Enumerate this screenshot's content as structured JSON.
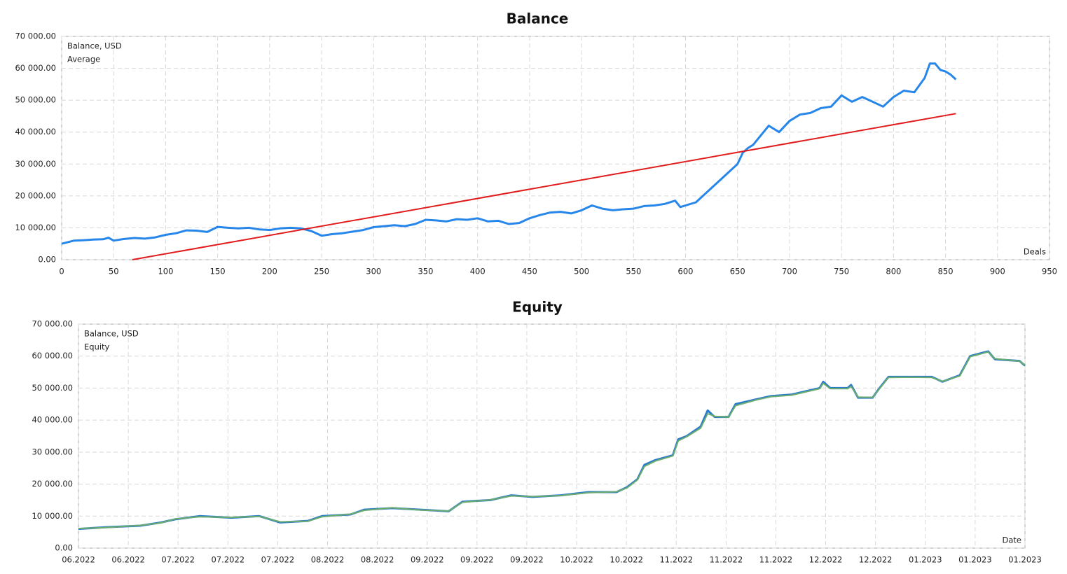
{
  "chart_data": [
    {
      "type": "line",
      "title": "Balance",
      "x_label": "Deals",
      "xlim": [
        0,
        950
      ],
      "xticks": [
        0,
        50,
        100,
        150,
        200,
        250,
        300,
        350,
        400,
        450,
        500,
        550,
        600,
        650,
        700,
        750,
        800,
        850,
        900,
        950
      ],
      "ylim": [
        0,
        70000
      ],
      "yticks": [
        {
          "value": 0,
          "label": "0.00"
        },
        {
          "value": 10000,
          "label": "10 000.00"
        },
        {
          "value": 20000,
          "label": "20 000.00"
        },
        {
          "value": 30000,
          "label": "30 000.00"
        },
        {
          "value": 40000,
          "label": "40 000.00"
        },
        {
          "value": 50000,
          "label": "50 000.00"
        },
        {
          "value": 60000,
          "label": "60 000.00"
        },
        {
          "value": 70000,
          "label": "70 000.00"
        }
      ],
      "grid": true,
      "series": [
        {
          "name": "Balance, USD",
          "color": "#1a7fe8",
          "x": [
            0,
            12,
            20,
            30,
            40,
            45,
            50,
            60,
            70,
            80,
            90,
            100,
            110,
            120,
            130,
            140,
            150,
            160,
            170,
            180,
            190,
            200,
            210,
            220,
            230,
            240,
            250,
            260,
            270,
            280,
            290,
            300,
            310,
            320,
            330,
            340,
            350,
            360,
            370,
            380,
            390,
            400,
            410,
            420,
            430,
            440,
            450,
            460,
            470,
            480,
            490,
            500,
            510,
            520,
            530,
            540,
            550,
            560,
            570,
            580,
            590,
            595,
            600,
            610,
            620,
            630,
            640,
            650,
            655,
            660,
            665,
            670,
            680,
            690,
            700,
            710,
            720,
            730,
            740,
            750,
            760,
            770,
            780,
            790,
            800,
            810,
            820,
            830,
            835,
            840,
            845,
            850,
            855,
            860
          ],
          "values": [
            5000,
            6000,
            6100,
            6300,
            6400,
            6900,
            6000,
            6500,
            6800,
            6600,
            7000,
            7800,
            8300,
            9200,
            9100,
            8700,
            10300,
            10000,
            9800,
            10000,
            9500,
            9300,
            9800,
            10000,
            9800,
            9000,
            7500,
            8000,
            8300,
            8800,
            9300,
            10200,
            10500,
            10800,
            10500,
            11200,
            12500,
            12300,
            12000,
            12700,
            12500,
            13000,
            12000,
            12200,
            11200,
            11500,
            13000,
            14000,
            14800,
            15000,
            14500,
            15500,
            17000,
            16000,
            15500,
            15800,
            16000,
            16800,
            17000,
            17500,
            18500,
            16500,
            17000,
            18000,
            21000,
            24000,
            27000,
            30000,
            33500,
            35000,
            36000,
            38000,
            42000,
            40000,
            43500,
            45500,
            46000,
            47500,
            48000,
            51500,
            49500,
            51000,
            49500,
            48000,
            51000,
            53000,
            52500,
            57000,
            61500,
            61500,
            59500,
            59000,
            58000,
            56500
          ]
        },
        {
          "name": "Average",
          "color": "#e01010",
          "x": [
            68,
            860
          ],
          "values": [
            0,
            45800
          ]
        }
      ]
    },
    {
      "type": "line",
      "title": "Equity",
      "x_label": "Date",
      "xlim": [
        0,
        19
      ],
      "xticks": [
        {
          "value": 0,
          "label": "06.2022"
        },
        {
          "value": 1,
          "label": "06.2022"
        },
        {
          "value": 2,
          "label": "07.2022"
        },
        {
          "value": 3,
          "label": "07.2022"
        },
        {
          "value": 4,
          "label": "07.2022"
        },
        {
          "value": 5,
          "label": "08.2022"
        },
        {
          "value": 6,
          "label": "08.2022"
        },
        {
          "value": 7,
          "label": "09.2022"
        },
        {
          "value": 8,
          "label": "09.2022"
        },
        {
          "value": 9,
          "label": "09.2022"
        },
        {
          "value": 10,
          "label": "10.2022"
        },
        {
          "value": 11,
          "label": "10.2022"
        },
        {
          "value": 12,
          "label": "11.2022"
        },
        {
          "value": 13,
          "label": "11.2022"
        },
        {
          "value": 14,
          "label": "11.2022"
        },
        {
          "value": 15,
          "label": "12.2022"
        },
        {
          "value": 16,
          "label": "12.2022"
        },
        {
          "value": 17,
          "label": "01.2023"
        },
        {
          "value": 18,
          "label": "01.2023"
        },
        {
          "value": 19,
          "label": "01.2023"
        }
      ],
      "ylim": [
        0,
        70000
      ],
      "yticks": [
        {
          "value": 0,
          "label": "0.00"
        },
        {
          "value": 10000,
          "label": "10 000.00"
        },
        {
          "value": 20000,
          "label": "20 000.00"
        },
        {
          "value": 30000,
          "label": "30 000.00"
        },
        {
          "value": 40000,
          "label": "40 000.00"
        },
        {
          "value": 50000,
          "label": "50 000.00"
        },
        {
          "value": 60000,
          "label": "60 000.00"
        },
        {
          "value": 70000,
          "label": "70 000.00"
        }
      ],
      "grid": true,
      "series": [
        {
          "name": "Balance, USD",
          "color": "#1f74c8",
          "x": [
            0,
            0.53,
            1.24,
            1.66,
            1.94,
            2.43,
            3.07,
            3.63,
            4.05,
            4.61,
            4.89,
            5.46,
            5.74,
            6.3,
            6.86,
            7.43,
            7.71,
            8.27,
            8.69,
            9.11,
            9.68,
            10.24,
            10.8,
            11.01,
            11.22,
            11.36,
            11.58,
            11.93,
            12.04,
            12.21,
            12.49,
            12.63,
            12.77,
            13.05,
            13.19,
            13.61,
            13.9,
            14.32,
            14.6,
            14.88,
            14.95,
            15.09,
            15.44,
            15.51,
            15.65,
            15.94,
            16.08,
            16.26,
            16.71,
            17.13,
            17.34,
            17.69,
            17.9,
            18.26,
            18.4,
            18.89,
            19
          ],
          "values": [
            6000,
            6500,
            7000,
            8000,
            9000,
            10000,
            9500,
            10000,
            8000,
            8500,
            10000,
            10500,
            12000,
            12500,
            12000,
            11500,
            14500,
            15000,
            16500,
            16000,
            16500,
            17500,
            17500,
            19000,
            21500,
            26000,
            27500,
            29000,
            34000,
            35000,
            38000,
            43000,
            41000,
            41000,
            45000,
            46500,
            47500,
            48000,
            49000,
            50000,
            52000,
            50000,
            50000,
            51000,
            47000,
            47000,
            50000,
            53500,
            53500,
            53500,
            52000,
            54000,
            60000,
            61500,
            59000,
            58500,
            57000
          ]
        },
        {
          "name": "Equity",
          "color": "#6fae6a",
          "x": [
            0,
            0.53,
            1.24,
            1.66,
            1.94,
            2.43,
            3.07,
            3.63,
            4.05,
            4.61,
            4.89,
            5.46,
            5.74,
            6.3,
            6.86,
            7.43,
            7.71,
            8.27,
            8.69,
            9.11,
            9.68,
            10.24,
            10.8,
            11.01,
            11.22,
            11.36,
            11.58,
            11.93,
            12.04,
            12.21,
            12.49,
            12.63,
            12.77,
            13.05,
            13.19,
            13.61,
            13.9,
            14.32,
            14.6,
            14.88,
            14.95,
            15.09,
            15.44,
            15.51,
            15.65,
            15.94,
            16.08,
            16.26,
            16.71,
            17.13,
            17.34,
            17.69,
            17.9,
            18.26,
            18.4,
            18.89,
            19
          ],
          "values": [
            6100,
            6400,
            7100,
            7900,
            9100,
            9800,
            9600,
            9900,
            8200,
            8400,
            9800,
            10600,
            11800,
            12600,
            11900,
            11600,
            14300,
            15100,
            16300,
            16100,
            16400,
            17300,
            17600,
            18800,
            21300,
            25500,
            27200,
            28800,
            33500,
            34800,
            37500,
            42000,
            41200,
            40900,
            44500,
            46300,
            47300,
            47800,
            48800,
            49800,
            51500,
            49800,
            49800,
            50500,
            47200,
            47100,
            49800,
            53300,
            53400,
            53300,
            52100,
            53800,
            59800,
            61300,
            59200,
            58400,
            57200
          ]
        }
      ]
    }
  ]
}
